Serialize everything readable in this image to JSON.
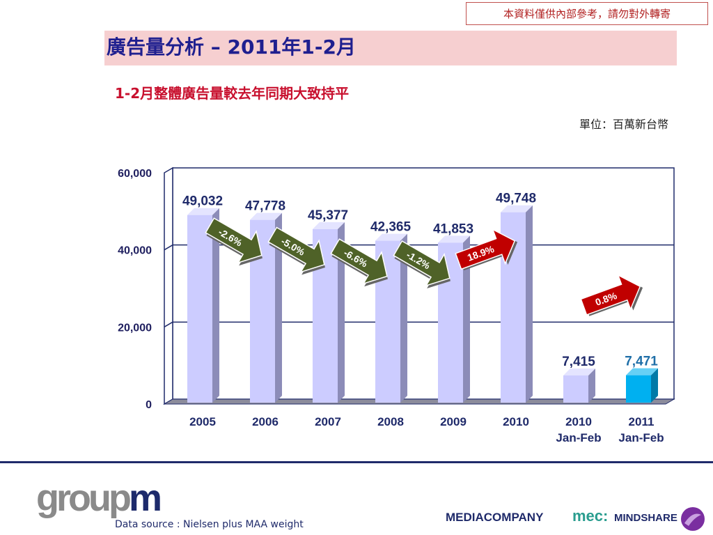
{
  "notice": "本資料僅供內部參考，請勿對外轉寄",
  "title": "廣告量分析 – 2011年1-2月",
  "subtitle": "1-2月整體廣告量較去年同期大致持平",
  "unit": "單位：百萬新台幣",
  "footer": {
    "source": "Data source : Nielsen plus MAA weight",
    "logo_groupm_a": "group",
    "logo_groupm_b": "m",
    "logo_mediacompany": "MEDIACOMPANY",
    "logo_mec": "mec:",
    "logo_mindshare": "MINDSHARE"
  },
  "colors": {
    "bar": "#ccccff",
    "bar_highlight": "#00b0f0",
    "arrow_down": "#4f6228",
    "arrow_up": "#c00000",
    "grid": "#1f2a6a",
    "label": "#1f2a6a"
  },
  "chart_data": {
    "type": "bar",
    "categories": [
      "2005",
      "2006",
      "2007",
      "2008",
      "2009",
      "2010",
      "2010 Jan-Feb",
      "2011 Jan-Feb"
    ],
    "category_lines": [
      [
        "2005"
      ],
      [
        "2006"
      ],
      [
        "2007"
      ],
      [
        "2008"
      ],
      [
        "2009"
      ],
      [
        "2010"
      ],
      [
        "2010",
        "Jan-Feb"
      ],
      [
        "2011",
        "Jan-Feb"
      ]
    ],
    "values": [
      49032,
      47778,
      45377,
      42365,
      41853,
      49748,
      7415,
      7471
    ],
    "value_labels": [
      "49,032",
      "47,778",
      "45,377",
      "42,365",
      "41,853",
      "49,748",
      "7,415",
      "7,471"
    ],
    "ylim": [
      0,
      60000
    ],
    "yticks": [
      0,
      20000,
      40000,
      60000
    ],
    "ytick_labels": [
      "0",
      "20,000",
      "40,000",
      "60,000"
    ],
    "grid": true,
    "highlight_index": 7,
    "changes": [
      {
        "label": "-2.6%",
        "from": 0,
        "to": 1,
        "direction": "down"
      },
      {
        "label": "-5.0%",
        "from": 1,
        "to": 2,
        "direction": "down"
      },
      {
        "label": "-6.6%",
        "from": 2,
        "to": 3,
        "direction": "down"
      },
      {
        "label": "-1.2%",
        "from": 3,
        "to": 4,
        "direction": "down"
      },
      {
        "label": "18.9%",
        "from": 4,
        "to": 5,
        "direction": "up"
      },
      {
        "label": "0.8%",
        "from": 6,
        "to": 7,
        "direction": "up"
      }
    ]
  }
}
